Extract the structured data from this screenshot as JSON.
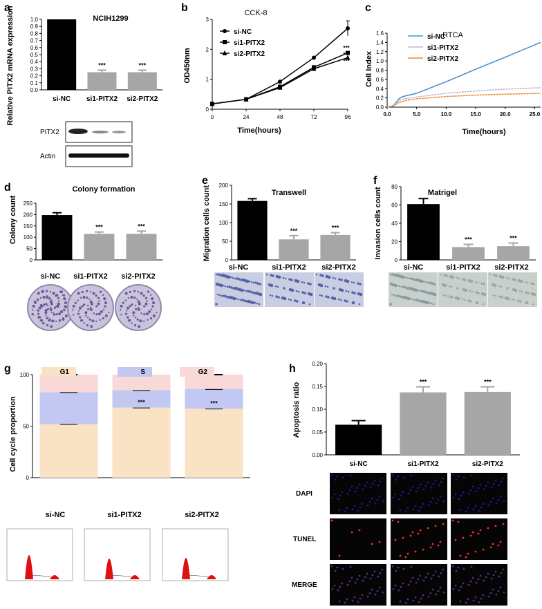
{
  "panels": {
    "a": {
      "letter": "a",
      "title": "NCIH1299",
      "ylabel": "Relative PITX2 mRNA expression",
      "blot_labels": [
        "PITX2",
        "Actin"
      ]
    },
    "b": {
      "letter": "b",
      "title": "CCK-8",
      "ylabel": "OD450nm",
      "xlabel": "Time(hours)"
    },
    "c": {
      "letter": "c",
      "title": "RTCA",
      "ylabel": "Cell Index",
      "xlabel": "Time(hours)"
    },
    "d": {
      "letter": "d",
      "title": "Colony formation",
      "ylabel": "Colony count",
      "image_labels": [
        "si-NC",
        "si1-PITX2",
        "si2-PITX2"
      ]
    },
    "e": {
      "letter": "e",
      "title": "Transwell",
      "ylabel": "Migration cells count",
      "image_labels": [
        "si-NC",
        "si1-PITX2",
        "si2-PITX2"
      ]
    },
    "f": {
      "letter": "f",
      "title": "Matrigel",
      "ylabel": "Invasion cells count",
      "image_labels": [
        "si-NC",
        "si1-PITX2",
        "si2-PITX2"
      ]
    },
    "g": {
      "letter": "g",
      "ylabel": "Cell cycle proportion",
      "flow_labels": [
        "si-NC",
        "si1-PITX2",
        "si2-PITX2"
      ]
    },
    "h": {
      "letter": "h",
      "ylabel": "Apoptosis ratio",
      "stain_labels": [
        "DAPI",
        "TUNEL",
        "MERGE"
      ]
    }
  },
  "sig": "***",
  "colors": {
    "black": "#000000",
    "gray": "#a6a6a6",
    "g1": "#fae2c4",
    "s": "#c2c8f2",
    "g2": "#f9d8d8",
    "nc": "#4f93c9",
    "si1": "#bfbccc",
    "si2": "#ec8a35",
    "crystal": "#6a5a9a",
    "flowred": "#e01010"
  },
  "chart_data": [
    {
      "panel": "a",
      "type": "bar",
      "categories": [
        "si-NC",
        "si1-PITX2",
        "si2-PITX2"
      ],
      "values": [
        1.0,
        0.25,
        0.25
      ],
      "errors": [
        0,
        0.03,
        0.03
      ],
      "ylim": [
        0,
        1.0
      ],
      "yticks": [
        "0.0",
        "0.1",
        "0.2",
        "0.3",
        "0.4",
        "0.5",
        "0.6",
        "0.7",
        "0.8",
        "0.9",
        "1.0"
      ],
      "annotations": [
        "",
        "***",
        "***"
      ]
    },
    {
      "panel": "b",
      "type": "line",
      "x": [
        0,
        24,
        48,
        72,
        96
      ],
      "xticks": [
        "0",
        "24",
        "48",
        "72",
        "96"
      ],
      "ylim": [
        0,
        3
      ],
      "yticks": [
        "0",
        "1",
        "2",
        "3"
      ],
      "series": [
        {
          "name": "si-NC",
          "marker": "circle",
          "values": [
            0.18,
            0.33,
            0.92,
            1.72,
            2.7
          ]
        },
        {
          "name": "si1-PITX2",
          "marker": "square",
          "values": [
            0.18,
            0.33,
            0.75,
            1.4,
            1.88
          ]
        },
        {
          "name": "si2-PITX2",
          "marker": "triangle",
          "values": [
            0.18,
            0.33,
            0.72,
            1.35,
            1.72
          ]
        }
      ],
      "annotations": [
        "***",
        "***"
      ]
    },
    {
      "panel": "c",
      "type": "line",
      "xlim": [
        0,
        26
      ],
      "xticks": [
        "0.0",
        "5.0",
        "10.0",
        "15.0",
        "20.0",
        "25.0"
      ],
      "ylim": [
        0,
        1.6
      ],
      "yticks": [
        "0.0",
        "0.2",
        "0.4",
        "0.6",
        "0.8",
        "1.0",
        "1.2",
        "1.4",
        "1.6"
      ],
      "series": [
        {
          "name": "si-NC",
          "x": [
            0,
            1,
            1.5,
            2,
            2.5,
            3,
            5,
            10,
            15,
            20,
            26
          ],
          "values": [
            0,
            0.03,
            0.1,
            0.18,
            0.22,
            0.24,
            0.3,
            0.55,
            0.82,
            1.08,
            1.4
          ]
        },
        {
          "name": "si1-PITX2",
          "x": [
            0,
            1,
            1.5,
            2,
            2.5,
            3,
            5,
            10,
            15,
            20,
            26
          ],
          "values": [
            0,
            0.03,
            0.08,
            0.14,
            0.17,
            0.18,
            0.22,
            0.3,
            0.35,
            0.39,
            0.42
          ]
        },
        {
          "name": "si2-PITX2",
          "x": [
            0,
            1,
            1.5,
            2,
            2.5,
            3,
            5,
            10,
            15,
            20,
            26
          ],
          "values": [
            0,
            0.02,
            0.06,
            0.1,
            0.12,
            0.14,
            0.18,
            0.23,
            0.26,
            0.28,
            0.3
          ]
        }
      ]
    },
    {
      "panel": "d",
      "type": "bar",
      "categories": [
        "",
        "",
        ""
      ],
      "values": [
        198,
        115,
        115
      ],
      "errors": [
        10,
        8,
        12
      ],
      "ylim": [
        0,
        250
      ],
      "yticks": [
        "0",
        "50",
        "100",
        "150",
        "200",
        "250"
      ],
      "annotations": [
        "",
        "***",
        "***"
      ]
    },
    {
      "panel": "e",
      "type": "bar",
      "categories": [
        "",
        "",
        ""
      ],
      "values": [
        158,
        55,
        67
      ],
      "errors": [
        6,
        10,
        6
      ],
      "ylim": [
        0,
        200
      ],
      "yticks": [
        "0",
        "50",
        "100",
        "150",
        "200"
      ],
      "annotations": [
        "",
        "***",
        "***"
      ]
    },
    {
      "panel": "f",
      "type": "bar",
      "categories": [
        "",
        "",
        ""
      ],
      "values": [
        61,
        14,
        15
      ],
      "errors": [
        6,
        3,
        3.5
      ],
      "ylim": [
        0,
        80
      ],
      "yticks": [
        "0",
        "20",
        "40",
        "60",
        "80"
      ],
      "annotations": [
        "",
        "***",
        "***"
      ]
    },
    {
      "panel": "g",
      "type": "bar",
      "stacked": true,
      "categories": [
        "",
        "",
        ""
      ],
      "legend": [
        "G1",
        "S",
        "G2"
      ],
      "ylim": [
        0,
        100
      ],
      "yticks": [
        "0",
        "50",
        "100"
      ],
      "series": [
        {
          "name": "G1",
          "values": [
            52,
            68,
            67
          ]
        },
        {
          "name": "S",
          "values": [
            31,
            17,
            19
          ]
        },
        {
          "name": "G2",
          "values": [
            17,
            15,
            14
          ]
        }
      ],
      "annotations": [
        "",
        "***",
        "***"
      ]
    },
    {
      "panel": "h",
      "type": "bar",
      "categories": [
        "si-NC",
        "si1-PITX2",
        "si2-PITX2"
      ],
      "values": [
        0.066,
        0.137,
        0.138
      ],
      "errors": [
        0.009,
        0.012,
        0.011
      ],
      "ylim": [
        0,
        0.2
      ],
      "yticks": [
        "0.00",
        "0.05",
        "0.10",
        "0.15",
        "0.20"
      ],
      "annotations": [
        "",
        "***",
        "***"
      ]
    }
  ]
}
